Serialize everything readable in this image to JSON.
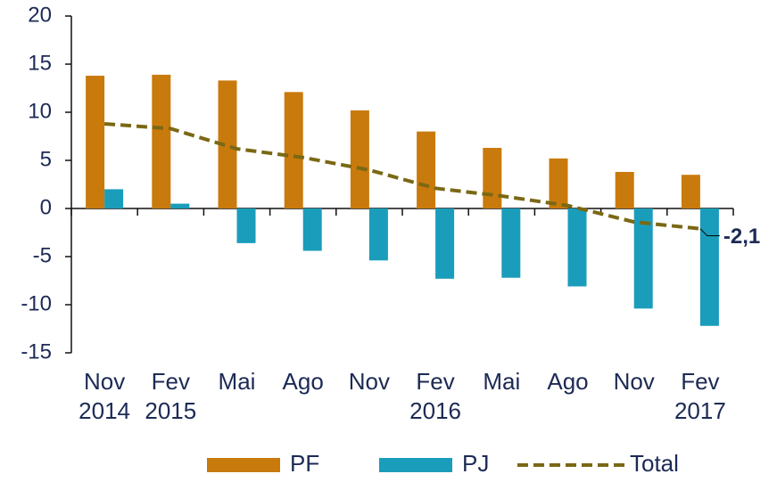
{
  "chart_data": {
    "type": "bar",
    "categories": [
      "Nov 2014",
      "Fev 2015",
      "Mai",
      "Ago",
      "Nov",
      "Fev 2016",
      "Mai",
      "Ago",
      "Nov",
      "Fev 2017"
    ],
    "series": [
      {
        "name": "PF",
        "type": "bar",
        "color": "#c97a0c",
        "values": [
          13.8,
          13.9,
          13.3,
          12.1,
          10.2,
          8.0,
          6.3,
          5.2,
          3.8,
          3.5
        ]
      },
      {
        "name": "PJ",
        "type": "bar",
        "color": "#1a9dbb",
        "values": [
          2.0,
          0.5,
          -3.6,
          -4.4,
          -5.4,
          -7.3,
          -7.2,
          -8.1,
          -10.4,
          -12.2
        ]
      },
      {
        "name": "Total",
        "type": "line",
        "color": "#7a6814",
        "dashed": true,
        "values": [
          8.8,
          8.3,
          6.2,
          5.3,
          4.0,
          2.1,
          1.3,
          0.3,
          -1.4,
          -2.1
        ],
        "value_labels": [
          null,
          null,
          null,
          null,
          null,
          null,
          null,
          null,
          null,
          "-2,1"
        ]
      }
    ],
    "ylim": [
      -15,
      20
    ],
    "yticks": [
      -15,
      -10,
      -5,
      0,
      5,
      10,
      15,
      20
    ],
    "grid": false,
    "legend": "bottom"
  }
}
